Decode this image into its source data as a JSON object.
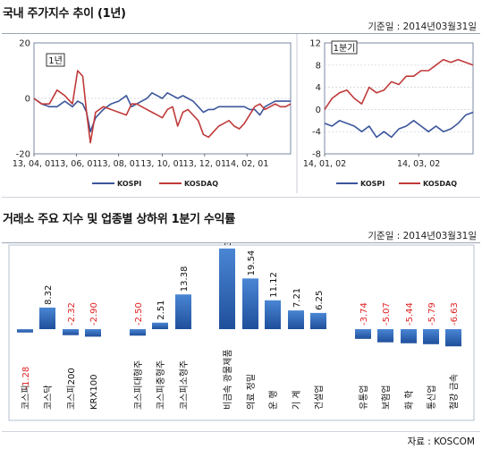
{
  "section1": {
    "title": "국내 주가지수 추이 (1년)",
    "basis": "기준일 : 2014년03월31일"
  },
  "section2": {
    "title": "거래소 주요 지수 및 업종별 상하위 1분기 수익률",
    "basis": "기준일 : 2014년03월31일"
  },
  "source": "자료 : KOSCOM",
  "colors": {
    "kospi": "#3b559b",
    "kosdaq": "#c03a3a",
    "bar_top": "#4a86d4",
    "bar_bottom": "#1f4f9b",
    "neg_label": "#e02020"
  },
  "chart_data": [
    {
      "type": "line",
      "tag": "1년",
      "ylim": [
        -20,
        20
      ],
      "yticks": [
        20,
        0,
        -20
      ],
      "xlim": [
        0,
        100
      ],
      "xticks": [
        {
          "x": 0,
          "label": "13, 04, 01"
        },
        {
          "x": 16.5,
          "label": "13, 06, 01"
        },
        {
          "x": 33,
          "label": "13, 08, 01"
        },
        {
          "x": 50,
          "label": "13, 10, 01"
        },
        {
          "x": 66.5,
          "label": "13, 12, 01"
        },
        {
          "x": 83,
          "label": "14, 02, 01"
        }
      ],
      "series": [
        {
          "name": "KOSPI",
          "x": [
            0,
            3,
            6,
            9,
            12,
            15,
            17,
            19,
            20.5,
            22,
            24,
            27,
            30,
            33,
            36,
            38,
            40,
            42,
            44,
            46,
            48,
            50,
            52,
            54,
            56,
            58,
            60,
            62,
            64,
            66,
            68,
            70,
            72,
            74,
            76,
            78,
            80,
            82,
            84,
            86,
            88,
            90,
            92,
            94,
            96,
            98,
            100
          ],
          "y": [
            0,
            -2,
            -3,
            -3,
            -1,
            -3,
            -1,
            -2,
            -5,
            -12,
            -7,
            -4,
            -2,
            -1,
            1,
            -3,
            -2,
            -1,
            0,
            2,
            1,
            0,
            2,
            1,
            0,
            1,
            0,
            -1,
            -3,
            -5,
            -4,
            -4,
            -3,
            -3,
            -3,
            -3,
            -3,
            -3,
            -4,
            -4,
            -6,
            -3,
            -2,
            -1,
            -1,
            -1,
            -1
          ]
        },
        {
          "name": "KOSDAQ",
          "x": [
            0,
            3,
            6,
            9,
            12,
            15,
            17,
            19,
            20.5,
            22,
            24,
            27,
            30,
            33,
            36,
            38,
            40,
            42,
            44,
            46,
            48,
            50,
            52,
            54,
            56,
            58,
            60,
            62,
            64,
            66,
            68,
            70,
            72,
            74,
            76,
            78,
            80,
            82,
            84,
            86,
            88,
            90,
            92,
            94,
            96,
            98,
            100
          ],
          "y": [
            0,
            -2,
            -2,
            3,
            1,
            -2,
            10,
            8,
            -5,
            -16,
            -5,
            -3,
            -4,
            -5,
            -6,
            -2,
            -2,
            -3,
            -4,
            -5,
            -6,
            -7,
            -4,
            -3,
            -10,
            -5,
            -4,
            -6,
            -8,
            -13,
            -14,
            -12,
            -10,
            -9,
            -8,
            -10,
            -11,
            -9,
            -6,
            -3,
            -2,
            -4,
            -3,
            -2,
            -3,
            -3,
            -2
          ]
        }
      ]
    },
    {
      "type": "line",
      "tag": "1분기",
      "ylim": [
        -8,
        12
      ],
      "yticks": [
        12,
        8,
        4,
        0,
        -4,
        -8
      ],
      "xlim": [
        0,
        60
      ],
      "xticks": [
        {
          "x": 0,
          "label": "14, 01, 02"
        },
        {
          "x": 38,
          "label": "14, 03, 02"
        }
      ],
      "series": [
        {
          "name": "KOSPI",
          "x": [
            0,
            3,
            6,
            9,
            12,
            15,
            18,
            21,
            24,
            27,
            30,
            33,
            36,
            39,
            42,
            45,
            48,
            51,
            54,
            57,
            60
          ],
          "y": [
            -2.5,
            -3,
            -2,
            -2.5,
            -3,
            -4,
            -3,
            -5,
            -4,
            -5,
            -3.5,
            -3,
            -2,
            -3,
            -4,
            -3,
            -4,
            -3.5,
            -2.5,
            -1,
            -0.5
          ]
        },
        {
          "name": "KOSDAQ",
          "x": [
            0,
            3,
            6,
            9,
            12,
            15,
            18,
            21,
            24,
            27,
            30,
            33,
            36,
            39,
            42,
            45,
            48,
            51,
            54,
            57,
            60
          ],
          "y": [
            0,
            2,
            3,
            3.5,
            2,
            1,
            4,
            3,
            3.5,
            5,
            4.5,
            6,
            6,
            7,
            7,
            8,
            9,
            8.5,
            9,
            8.5,
            8
          ]
        }
      ]
    },
    {
      "type": "bar",
      "categories": [
        "코스피",
        "코스닥",
        "코스피200",
        "KRX100",
        "코스피대형주",
        "코스피중형주",
        "코스피소형주",
        "비금속 광물제품",
        "의료 정밀",
        "운 행",
        "기 계",
        "건설업",
        "유통업",
        "보험업",
        "화 학",
        "통신업",
        "철강 금속"
      ],
      "values": [
        -1.28,
        8.32,
        -2.32,
        -2.9,
        -2.5,
        2.51,
        13.38,
        31.09,
        19.54,
        11.12,
        7.21,
        6.25,
        -3.74,
        -5.07,
        -5.44,
        -5.79,
        -6.63
      ],
      "value_labels": [
        "-1.28",
        "8.32",
        "-2.32",
        "-2.90",
        "-2.50",
        "2.51",
        "13.38",
        "31.09",
        "19.54",
        "11.12",
        "7.21",
        "6.25",
        "-3.74",
        "-5.07",
        "-5.44",
        "-5.79",
        "-6.63"
      ]
    }
  ]
}
